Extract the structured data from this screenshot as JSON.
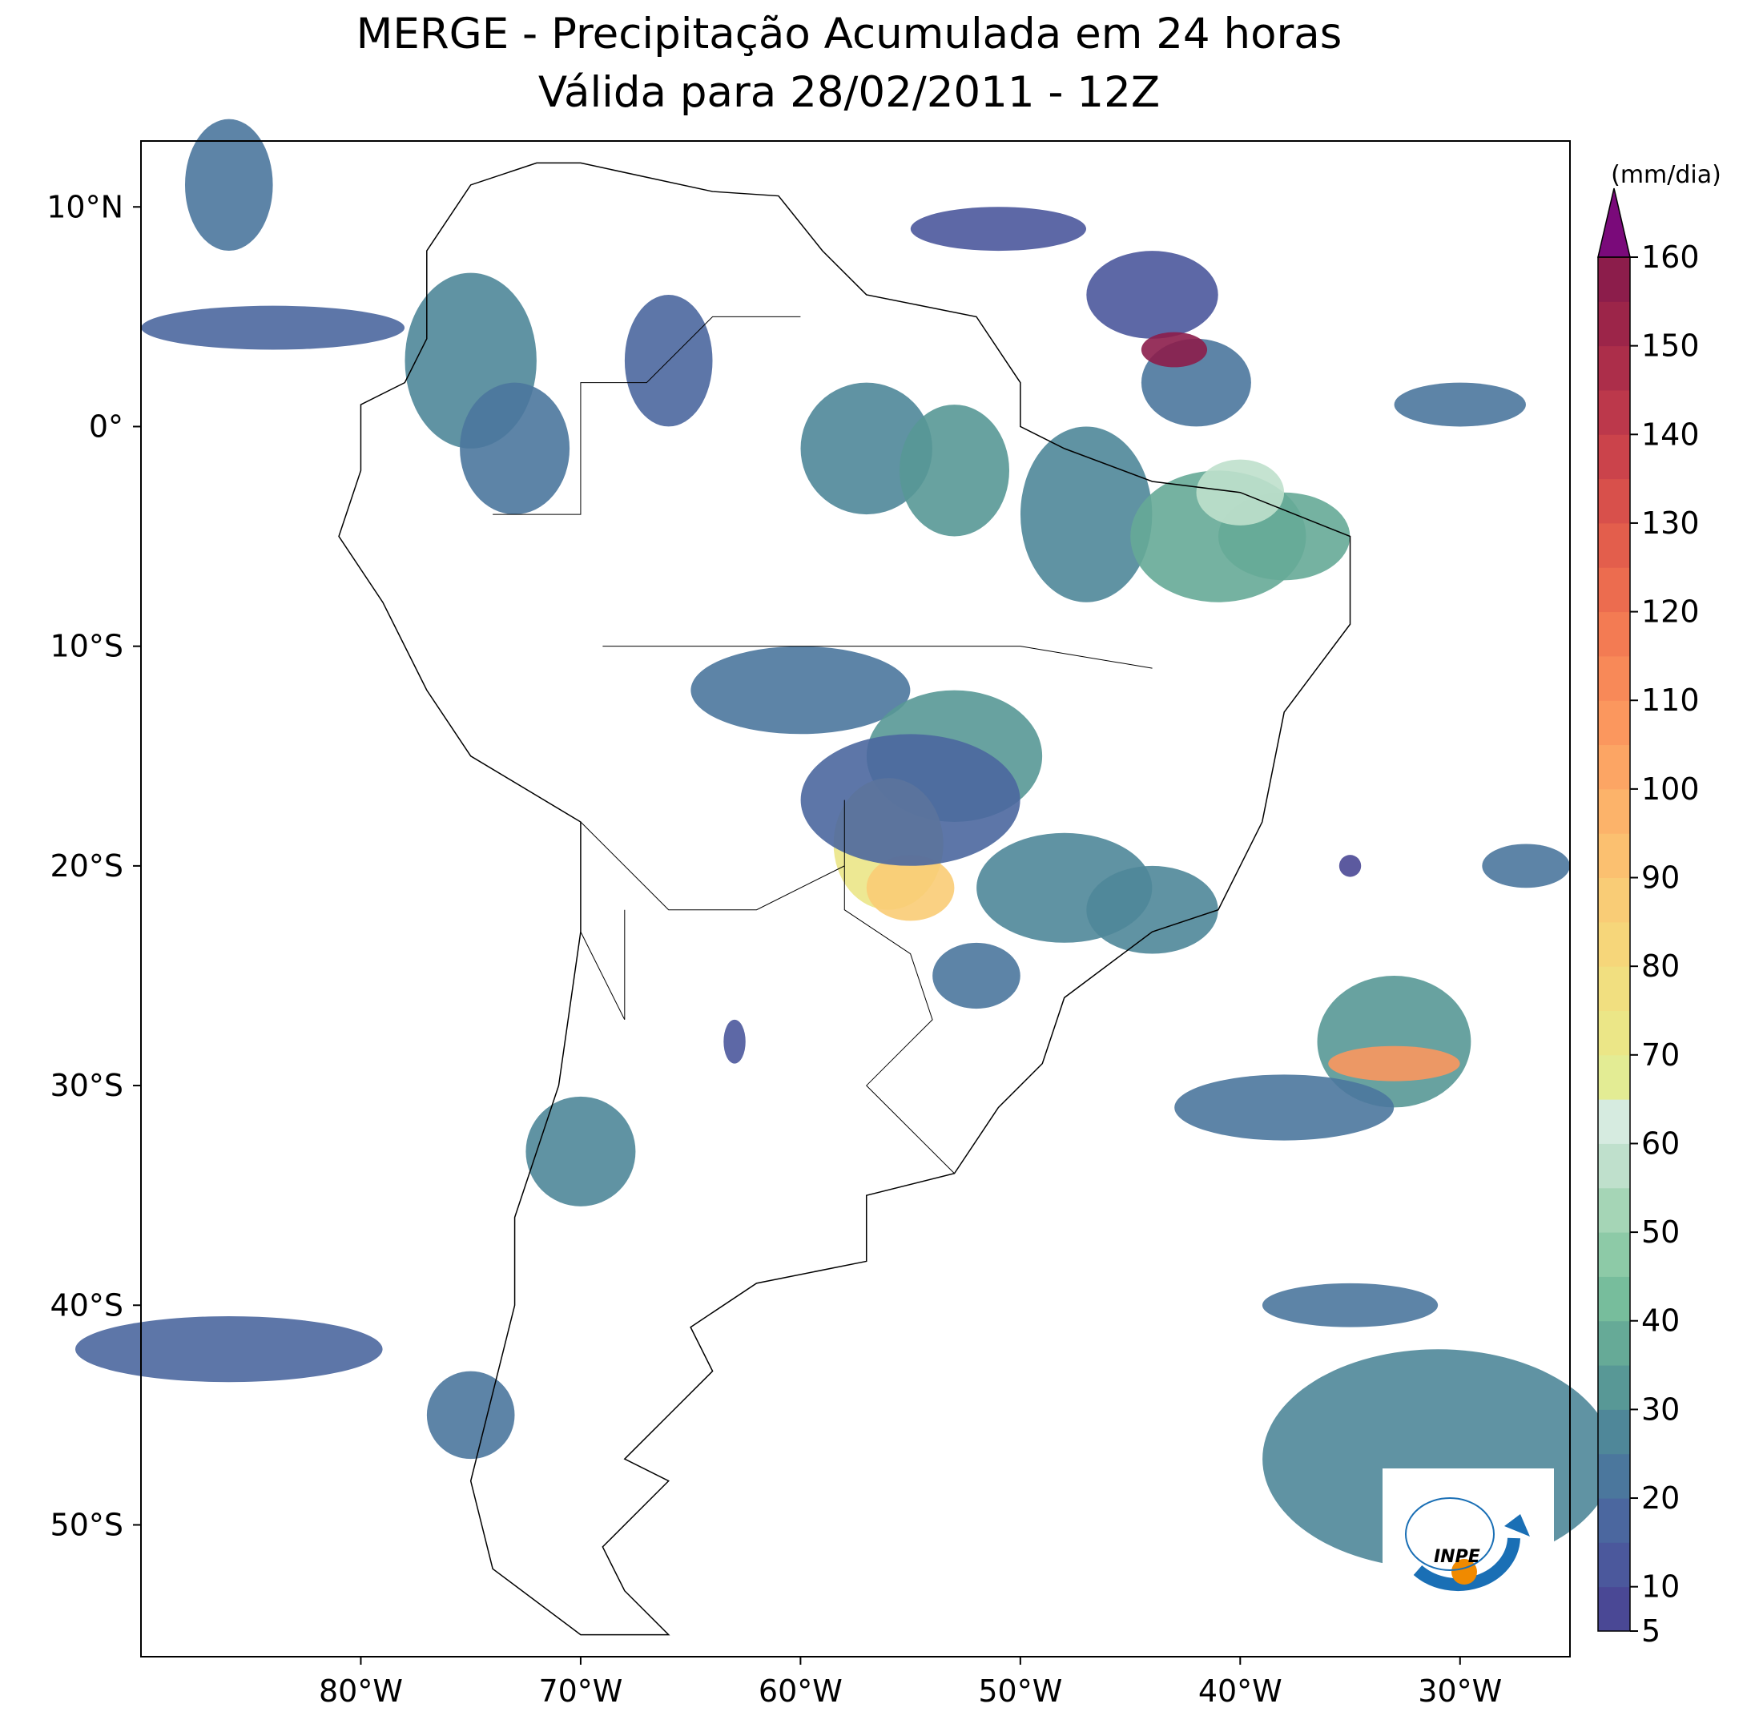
{
  "map": {
    "title": "MERGE - Precipitação Acumulada em 24 horas",
    "subtitle": "Válida para 28/02/2011 - 12Z",
    "xlim": [
      -90,
      -25
    ],
    "ylim": [
      -56,
      13
    ],
    "xticks": [
      {
        "value": -80,
        "label": "80°W"
      },
      {
        "value": -70,
        "label": "70°W"
      },
      {
        "value": -60,
        "label": "60°W"
      },
      {
        "value": -50,
        "label": "50°W"
      },
      {
        "value": -40,
        "label": "40°W"
      },
      {
        "value": -30,
        "label": "30°W"
      }
    ],
    "yticks": [
      {
        "value": 10,
        "label": "10°N"
      },
      {
        "value": 0,
        "label": "0°"
      },
      {
        "value": -10,
        "label": "10°S"
      },
      {
        "value": -20,
        "label": "20°S"
      },
      {
        "value": -30,
        "label": "30°S"
      },
      {
        "value": -40,
        "label": "40°S"
      },
      {
        "value": -50,
        "label": "50°S"
      }
    ],
    "colorbar": {
      "label": "(mm/dia)",
      "lim": [
        5,
        160
      ],
      "ticks": [
        5,
        10,
        20,
        30,
        40,
        50,
        60,
        70,
        80,
        90,
        100,
        110,
        120,
        130,
        140,
        150,
        160
      ],
      "colors": [
        "#4a4895",
        "#4b589c",
        "#4b679f",
        "#4b779d",
        "#4f8799",
        "#589896",
        "#66aa97",
        "#77bd9c",
        "#8dcaa7",
        "#a5d5b6",
        "#bfe0cc",
        "#d6ebe0",
        "#e3ec94",
        "#ebe687",
        "#f1df80",
        "#f6d67a",
        "#f9cc76",
        "#fbc070",
        "#fcb36a",
        "#fca564",
        "#fb975e",
        "#f88958",
        "#f37b53",
        "#ec6c4f",
        "#e35e4c",
        "#d8504b",
        "#cb434b",
        "#bc384b",
        "#ac2e4a",
        "#9c2549",
        "#8c1d4b"
      ],
      "extend_color": "#7a0a7a"
    },
    "logo": "INPE"
  }
}
